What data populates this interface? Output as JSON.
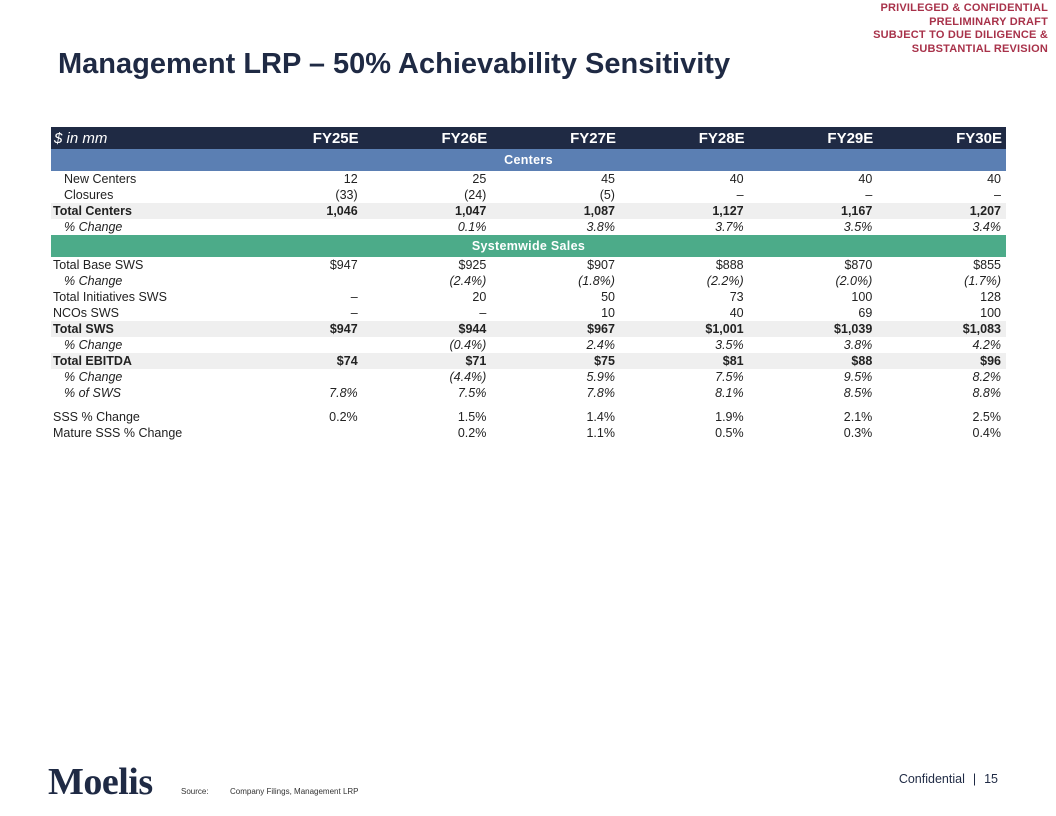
{
  "confidentiality": [
    "PRIVILEGED & CONFIDENTIAL",
    "PRELIMINARY DRAFT",
    "SUBJECT TO DUE DILIGENCE &",
    "SUBSTANTIAL REVISION"
  ],
  "title": "Management LRP – 50% Achievability Sensitivity",
  "table": {
    "unit_label": "$ in mm",
    "columns": [
      "FY25E",
      "FY26E",
      "FY27E",
      "FY28E",
      "FY29E",
      "FY30E"
    ],
    "sections": [
      {
        "header": "Centers",
        "color": "#5b7fb3",
        "rows": [
          {
            "label": "New Centers",
            "values": [
              "12",
              "25",
              "45",
              "40",
              "40",
              "40"
            ]
          },
          {
            "label": "Closures",
            "values": [
              "(33)",
              "(24)",
              "(5)",
              "–",
              "–",
              "–"
            ]
          },
          {
            "label": "Total Centers",
            "values": [
              "1,046",
              "1,047",
              "1,087",
              "1,127",
              "1,167",
              "1,207"
            ]
          },
          {
            "label": "% Change",
            "values": [
              "",
              "0.1%",
              "3.8%",
              "3.7%",
              "3.5%",
              "3.4%"
            ]
          }
        ]
      },
      {
        "header": "Systemwide Sales",
        "color": "#4cab89",
        "rows": [
          {
            "label": "Total Base SWS",
            "values": [
              "$947",
              "$925",
              "$907",
              "$888",
              "$870",
              "$855"
            ]
          },
          {
            "label": "% Change",
            "values": [
              "",
              "(2.4%)",
              "(1.8%)",
              "(2.2%)",
              "(2.0%)",
              "(1.7%)"
            ]
          },
          {
            "label": "Total Initiatives SWS",
            "values": [
              "–",
              "20",
              "50",
              "73",
              "100",
              "128"
            ]
          },
          {
            "label": "NCOs SWS",
            "values": [
              "–",
              "–",
              "10",
              "40",
              "69",
              "100"
            ]
          },
          {
            "label": "Total SWS",
            "values": [
              "$947",
              "$944",
              "$967",
              "$1,001",
              "$1,039",
              "$1,083"
            ]
          },
          {
            "label": "% Change",
            "values": [
              "",
              "(0.4%)",
              "2.4%",
              "3.5%",
              "3.8%",
              "4.2%"
            ]
          },
          {
            "label": "Total EBITDA",
            "values": [
              "$74",
              "$71",
              "$75",
              "$81",
              "$88",
              "$96"
            ]
          },
          {
            "label": "% Change",
            "values": [
              "",
              "(4.4%)",
              "5.9%",
              "7.5%",
              "9.5%",
              "8.2%"
            ]
          },
          {
            "label": "% of SWS",
            "values": [
              "7.8%",
              "7.5%",
              "7.8%",
              "8.1%",
              "8.5%",
              "8.8%"
            ]
          },
          {
            "label": "SSS % Change",
            "values": [
              "0.2%",
              "1.5%",
              "1.4%",
              "1.9%",
              "2.1%",
              "2.5%"
            ]
          },
          {
            "label": "Mature SSS % Change",
            "values": [
              "",
              "0.2%",
              "1.1%",
              "0.5%",
              "0.3%",
              "0.4%"
            ]
          }
        ]
      }
    ]
  },
  "logo": "Moelis",
  "source": {
    "label": "Source:",
    "text": "Company Filings, Management LRP"
  },
  "footer": {
    "confidential": "Confidential",
    "separator": "|",
    "page": "15"
  }
}
